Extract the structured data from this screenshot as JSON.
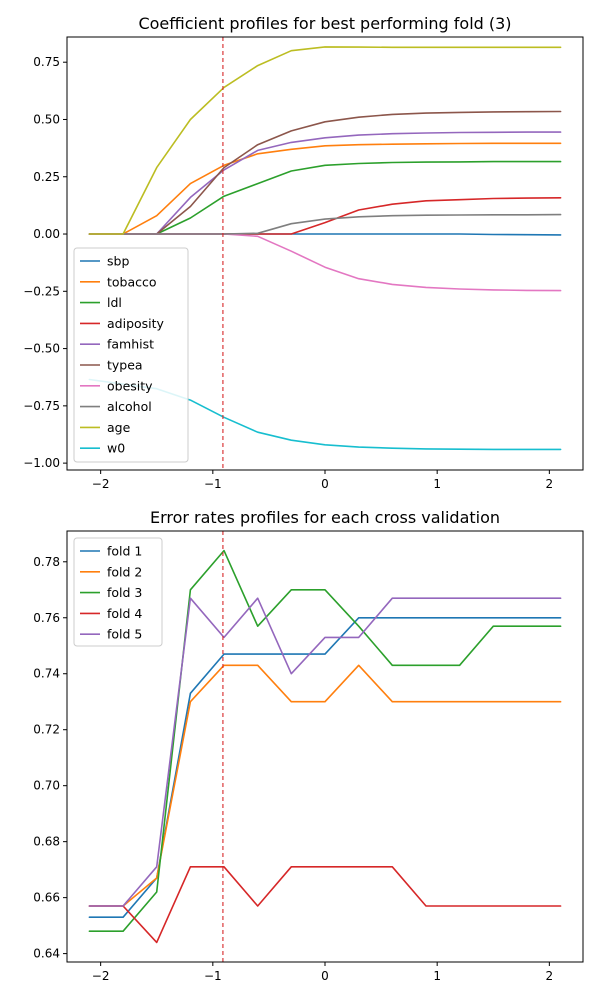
{
  "chart_data": [
    {
      "type": "line",
      "title": "Coefficient profiles for best performing fold (3)",
      "xlabel": "",
      "ylabel": "",
      "xlim": [
        -2.3,
        2.3
      ],
      "ylim": [
        -1.03,
        0.86
      ],
      "xticks": [
        -2,
        -1,
        0,
        1,
        2
      ],
      "xtick_labels": [
        "−2",
        "−1",
        "0",
        "1",
        "2"
      ],
      "yticks": [
        -1.0,
        -0.75,
        -0.5,
        -0.25,
        0.0,
        0.25,
        0.5,
        0.75
      ],
      "ytick_labels": [
        "−1.00",
        "−0.75",
        "−0.50",
        "−0.25",
        "0.00",
        "0.25",
        "0.50",
        "0.75"
      ],
      "vline_x": -0.91,
      "legend_position": "center-left",
      "x": [
        -2.1,
        -1.8,
        -1.5,
        -1.2,
        -0.9,
        -0.6,
        -0.3,
        0.0,
        0.3,
        0.6,
        0.9,
        1.2,
        1.5,
        1.8,
        2.1
      ],
      "series": [
        {
          "name": "sbp",
          "color": "#1f77b4",
          "values": [
            0,
            0,
            0,
            0,
            0,
            0,
            0,
            0,
            0,
            0,
            0,
            0,
            -0.002,
            -0.003,
            -0.004
          ]
        },
        {
          "name": "tobacco",
          "color": "#ff7f0e",
          "values": [
            0,
            0,
            0.08,
            0.22,
            0.3,
            0.35,
            0.37,
            0.385,
            0.39,
            0.392,
            0.394,
            0.395,
            0.396,
            0.396,
            0.396
          ]
        },
        {
          "name": "ldl",
          "color": "#2ca02c",
          "values": [
            0,
            0,
            0,
            0.07,
            0.165,
            0.22,
            0.275,
            0.3,
            0.308,
            0.312,
            0.314,
            0.315,
            0.316,
            0.316,
            0.316
          ]
        },
        {
          "name": "adiposity",
          "color": "#d62728",
          "values": [
            0,
            0,
            0,
            0,
            0,
            0,
            0,
            0.05,
            0.105,
            0.13,
            0.145,
            0.15,
            0.155,
            0.157,
            0.158
          ]
        },
        {
          "name": "famhist",
          "color": "#9467bd",
          "values": [
            0,
            0,
            0,
            0.16,
            0.28,
            0.365,
            0.4,
            0.42,
            0.432,
            0.438,
            0.441,
            0.443,
            0.444,
            0.445,
            0.445
          ]
        },
        {
          "name": "typea",
          "color": "#8c564b",
          "values": [
            0,
            0,
            0,
            0.12,
            0.29,
            0.39,
            0.45,
            0.49,
            0.51,
            0.522,
            0.528,
            0.531,
            0.533,
            0.534,
            0.535
          ]
        },
        {
          "name": "obesity",
          "color": "#e377c2",
          "values": [
            0,
            0,
            0,
            0,
            0,
            -0.01,
            -0.075,
            -0.145,
            -0.195,
            -0.22,
            -0.233,
            -0.24,
            -0.244,
            -0.246,
            -0.247
          ]
        },
        {
          "name": "alcohol",
          "color": "#7f7f7f",
          "values": [
            0,
            0,
            0,
            0,
            0,
            0.003,
            0.045,
            0.065,
            0.075,
            0.08,
            0.082,
            0.083,
            0.084,
            0.084,
            0.085
          ]
        },
        {
          "name": "age",
          "color": "#bcbd22",
          "values": [
            0,
            0,
            0.29,
            0.5,
            0.64,
            0.735,
            0.8,
            0.817,
            0.816,
            0.815,
            0.815,
            0.815,
            0.815,
            0.815,
            0.815
          ]
        },
        {
          "name": "w0",
          "color": "#17becf",
          "values": [
            -0.635,
            -0.655,
            -0.675,
            -0.725,
            -0.8,
            -0.865,
            -0.9,
            -0.92,
            -0.93,
            -0.935,
            -0.938,
            -0.939,
            -0.94,
            -0.94,
            -0.94
          ]
        }
      ]
    },
    {
      "type": "line",
      "title": "Error rates profiles for each cross validation",
      "xlabel": "",
      "ylabel": "",
      "xlim": [
        -2.3,
        2.3
      ],
      "ylim": [
        0.637,
        0.791
      ],
      "xticks": [
        -2,
        -1,
        0,
        1,
        2
      ],
      "xtick_labels": [
        "−2",
        "−1",
        "0",
        "1",
        "2"
      ],
      "yticks": [
        0.64,
        0.66,
        0.68,
        0.7,
        0.72,
        0.74,
        0.76,
        0.78
      ],
      "ytick_labels": [
        "0.64",
        "0.66",
        "0.68",
        "0.70",
        "0.72",
        "0.74",
        "0.76",
        "0.78"
      ],
      "vline_x": -0.91,
      "legend_position": "upper-left",
      "x": [
        -2.1,
        -1.8,
        -1.5,
        -1.2,
        -0.9,
        -0.6,
        -0.3,
        0.0,
        0.3,
        0.6,
        0.9,
        1.2,
        1.5,
        1.8,
        2.1
      ],
      "series": [
        {
          "name": "fold 1",
          "color": "#1f77b4",
          "values": [
            0.653,
            0.653,
            0.667,
            0.733,
            0.747,
            0.747,
            0.747,
            0.747,
            0.76,
            0.76,
            0.76,
            0.76,
            0.76,
            0.76,
            0.76
          ]
        },
        {
          "name": "fold 2",
          "color": "#ff7f0e",
          "values": [
            0.657,
            0.657,
            0.667,
            0.73,
            0.743,
            0.743,
            0.73,
            0.73,
            0.743,
            0.73,
            0.73,
            0.73,
            0.73,
            0.73,
            0.73
          ]
        },
        {
          "name": "fold 3",
          "color": "#2ca02c",
          "values": [
            0.648,
            0.648,
            0.662,
            0.77,
            0.784,
            0.757,
            0.77,
            0.77,
            0.757,
            0.743,
            0.743,
            0.743,
            0.757,
            0.757,
            0.757
          ]
        },
        {
          "name": "fold 4",
          "color": "#d62728",
          "values": [
            0.657,
            0.657,
            0.644,
            0.671,
            0.671,
            0.657,
            0.671,
            0.671,
            0.671,
            0.671,
            0.657,
            0.657,
            0.657,
            0.657,
            0.657
          ]
        },
        {
          "name": "fold 5",
          "color": "#9467bd",
          "values": [
            0.657,
            0.657,
            0.671,
            0.767,
            0.753,
            0.767,
            0.74,
            0.753,
            0.753,
            0.767,
            0.767,
            0.767,
            0.767,
            0.767,
            0.767
          ]
        }
      ]
    }
  ]
}
